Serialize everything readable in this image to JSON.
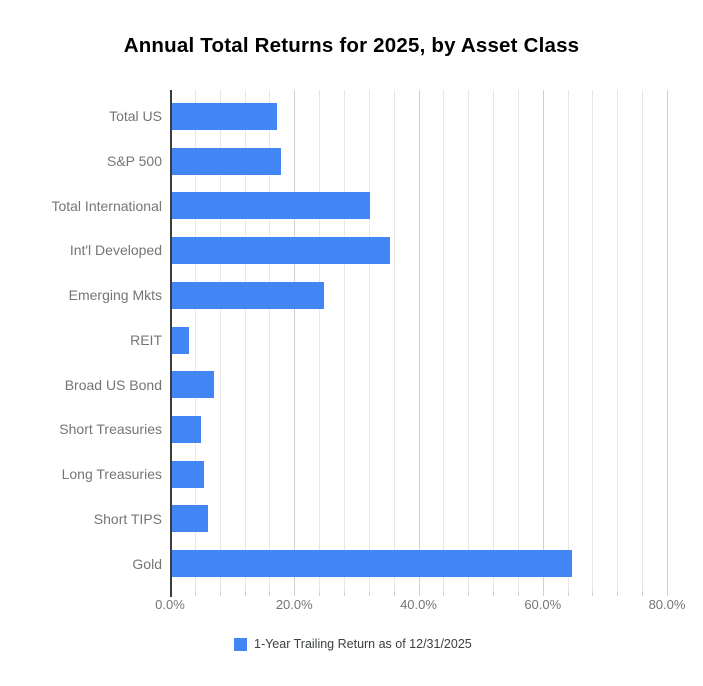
{
  "chart_data": {
    "type": "bar",
    "orientation": "horizontal",
    "title": "Annual Total Returns for 2025, by Asset Class",
    "categories": [
      "Total US",
      "S&P 500",
      "Total International",
      "Int'l Developed",
      "Emerging Mkts",
      "REIT",
      "Broad US Bond",
      "Short Treasuries",
      "Long Treasuries",
      "Short TIPS",
      "Gold"
    ],
    "series": [
      {
        "name": "1-Year Trailing Return as of 12/31/2025",
        "values": [
          17.0,
          17.7,
          32.0,
          35.3,
          24.7,
          2.9,
          7.0,
          4.8,
          5.3,
          5.9,
          64.5
        ]
      }
    ],
    "value_unit": "%",
    "xlabel": "",
    "ylabel": "",
    "x_ticks": [
      "0.0%",
      "20.0%",
      "40.0%",
      "60.0%",
      "80.0%"
    ],
    "x_tick_values": [
      0,
      20,
      40,
      60,
      80
    ],
    "xlim": [
      0,
      80.8
    ],
    "minor_grid_step": 4,
    "major_grid_step": 20,
    "grid": true,
    "legend_position": "bottom",
    "colors": {
      "bar": "#4285f4",
      "title": "#000000",
      "category_label": "#757575",
      "tick_label": "#757575",
      "legend_text": "#3c4043",
      "minor_gridline": "#e7e7e7",
      "major_gridline": "#d0d0d0",
      "axis_line": "#3c3c3c",
      "background": "#ffffff"
    }
  }
}
